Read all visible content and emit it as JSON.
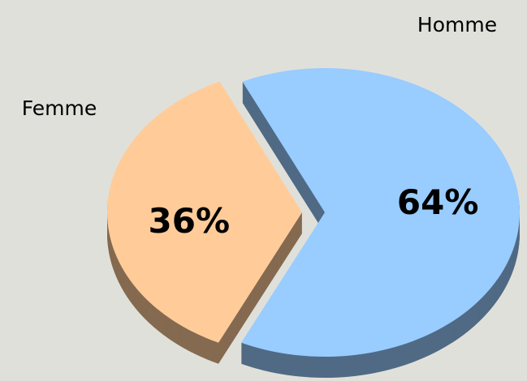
{
  "chart_data": {
    "type": "pie",
    "categories": [
      "Homme",
      "Femme"
    ],
    "values": [
      64,
      36
    ],
    "value_labels": [
      "64%",
      "36%"
    ],
    "colors": [
      "#99ccff",
      "#ffcc99"
    ]
  }
}
